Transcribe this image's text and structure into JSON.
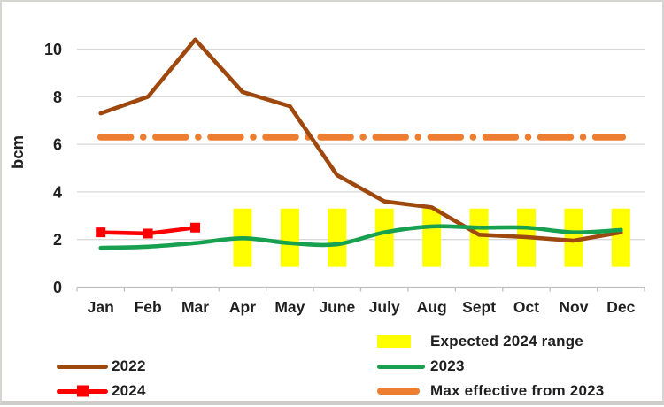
{
  "window": {
    "background": "#ffffff",
    "border_color": "#d7d5d1"
  },
  "colors": {
    "series_2022": "#9E480E",
    "series_2023": "#16A050",
    "series_2024": "#FF0000",
    "expected_range": "#FFFF00",
    "max_effective": "#ED7D31",
    "gridline": "#D9D9D9",
    "axis_line": "#BFBFBF",
    "text": "#1f1f1f"
  },
  "chart_data": {
    "type": "line",
    "title": "",
    "xlabel": "",
    "ylabel": "bcm",
    "categories": [
      "Jan",
      "Feb",
      "Mar",
      "Apr",
      "May",
      "June",
      "July",
      "Aug",
      "Sept",
      "Oct",
      "Nov",
      "Dec"
    ],
    "yticks": [
      0,
      2,
      4,
      6,
      8,
      10
    ],
    "ylim": [
      0,
      11.2
    ],
    "grid": "horizontal",
    "legend_position": "bottom",
    "series": [
      {
        "name": "2022",
        "color": "#9E480E",
        "smooth": false,
        "marker": "none",
        "values": [
          7.3,
          8.0,
          10.4,
          8.2,
          7.6,
          4.7,
          3.6,
          3.35,
          2.2,
          2.1,
          1.95,
          2.3
        ]
      },
      {
        "name": "2023",
        "color": "#16A050",
        "smooth": true,
        "marker": "none",
        "values": [
          1.65,
          1.7,
          1.85,
          2.05,
          1.85,
          1.8,
          2.3,
          2.55,
          2.5,
          2.5,
          2.3,
          2.4
        ]
      },
      {
        "name": "2024",
        "color": "#FF0000",
        "smooth": false,
        "marker": "square",
        "values": [
          2.3,
          2.25,
          2.5,
          null,
          null,
          null,
          null,
          null,
          null,
          null,
          null,
          null
        ]
      }
    ],
    "range_band": {
      "name": "Expected 2024 range",
      "color": "#FFFF00",
      "months": [
        "Apr",
        "May",
        "June",
        "July",
        "Aug",
        "Sept",
        "Oct",
        "Nov",
        "Dec"
      ],
      "low": 0.85,
      "high": 3.3
    },
    "max_line": {
      "name": "Max effective from 2023",
      "color": "#ED7D31",
      "value": 6.3,
      "style": "dash-dot"
    }
  },
  "legend": {
    "left": [
      {
        "label": "2022"
      },
      {
        "label": "2024"
      }
    ],
    "right": [
      {
        "label": "Expected 2024 range"
      },
      {
        "label": "2023"
      },
      {
        "label": "Max effective from 2023"
      }
    ]
  }
}
